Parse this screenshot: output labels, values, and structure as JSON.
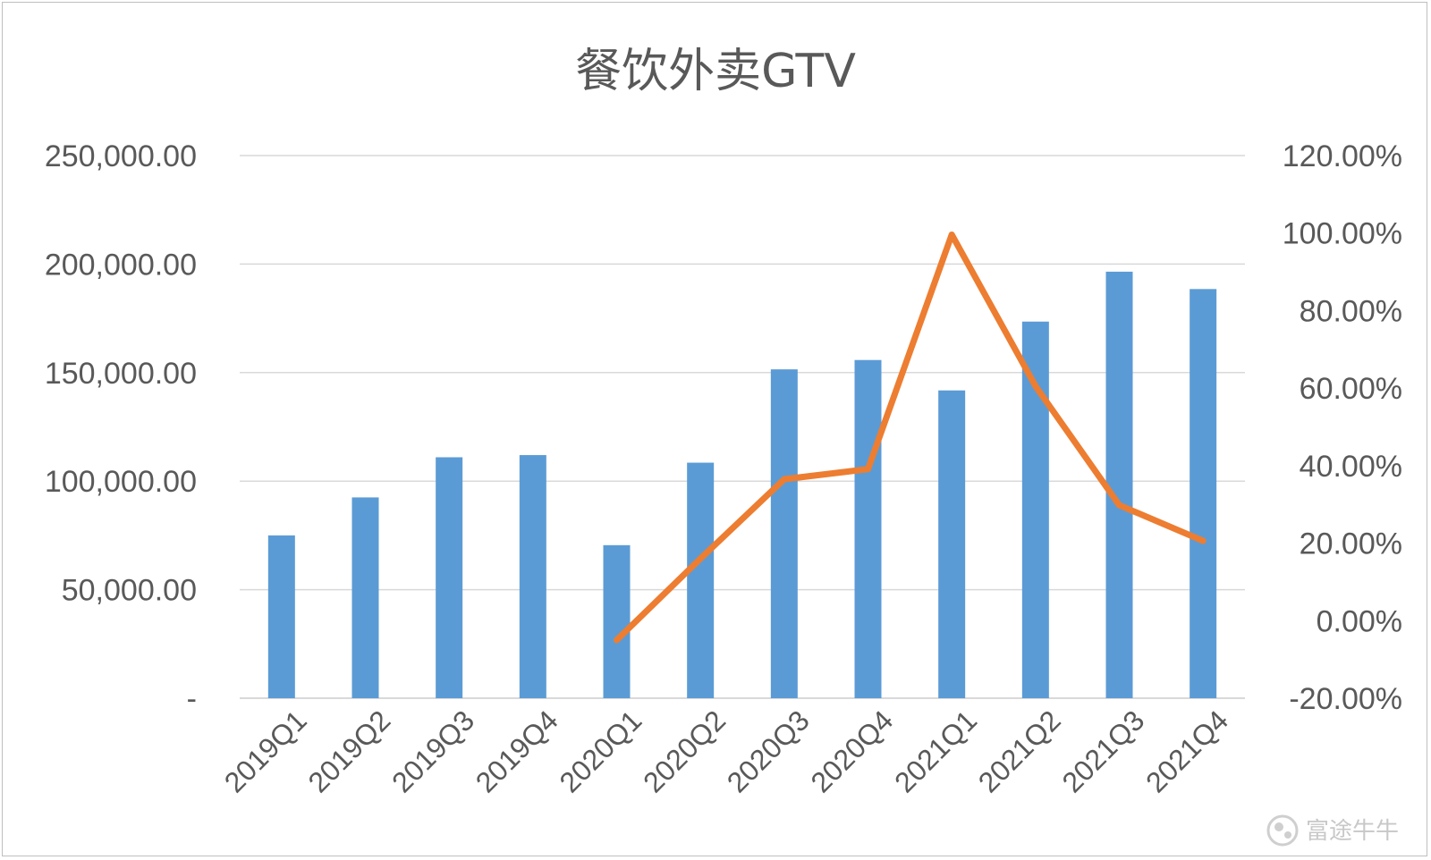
{
  "chart_data": {
    "type": "bar",
    "title": "餐饮外卖GTV",
    "categories": [
      "2019Q1",
      "2019Q2",
      "2019Q3",
      "2019Q4",
      "2020Q1",
      "2020Q2",
      "2020Q3",
      "2020Q4",
      "2021Q1",
      "2021Q2",
      "2021Q3",
      "2021Q4"
    ],
    "series": [
      {
        "type": "bar",
        "axis": "left",
        "color": "#5b9bd5",
        "values": [
          75000,
          92500,
          111000,
          112000,
          70500,
          108500,
          151500,
          155800,
          141800,
          173500,
          196500,
          188500
        ]
      },
      {
        "type": "line",
        "axis": "right",
        "color": "#ed7d31",
        "values": [
          null,
          null,
          null,
          null,
          -5.0,
          16.0,
          36.5,
          39.1,
          99.6,
          60.5,
          29.8,
          20.6
        ]
      }
    ],
    "left_axis": {
      "range": [
        0,
        250000
      ],
      "ticks": [
        {
          "value": 0,
          "label": "-"
        },
        {
          "value": 50000,
          "label": "50,000.00"
        },
        {
          "value": 100000,
          "label": "100,000.00"
        },
        {
          "value": 150000,
          "label": "150,000.00"
        },
        {
          "value": 200000,
          "label": "200,000.00"
        },
        {
          "value": 250000,
          "label": "250,000.00"
        }
      ]
    },
    "right_axis": {
      "range": [
        -20,
        120
      ],
      "ticks": [
        {
          "value": -20,
          "label": "-20.00%"
        },
        {
          "value": 0,
          "label": "0.00%"
        },
        {
          "value": 20,
          "label": "20.00%"
        },
        {
          "value": 40,
          "label": "40.00%"
        },
        {
          "value": 60,
          "label": "60.00%"
        },
        {
          "value": 80,
          "label": "80.00%"
        },
        {
          "value": 100,
          "label": "100.00%"
        },
        {
          "value": 120,
          "label": "120.00%"
        }
      ]
    },
    "grid": true,
    "legend": "none",
    "colors": {
      "gridline": "#d9d9d9",
      "axis_text": "#595959"
    }
  },
  "watermark": {
    "text": "富途牛牛",
    "icon": "futu-logo-icon"
  }
}
